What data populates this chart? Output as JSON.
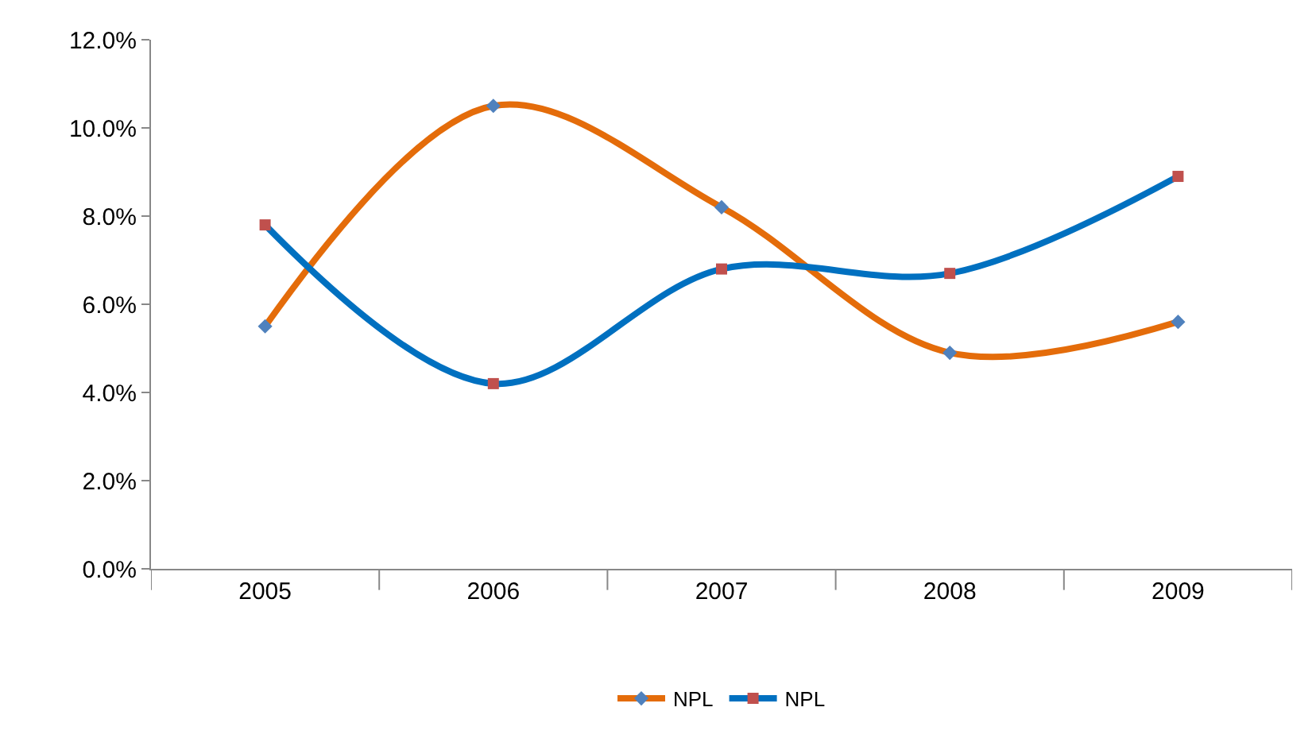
{
  "chart_data": {
    "type": "line",
    "categories": [
      "2005",
      "2006",
      "2007",
      "2008",
      "2009"
    ],
    "series": [
      {
        "name": "NPL",
        "color": "#e46c0a",
        "colors": [
          "#4f81bd",
          "#4f81bd",
          "#4f81bd",
          "#4f81bd",
          "#4f81bd"
        ],
        "marker": "diamond",
        "values": [
          5.5,
          10.5,
          8.2,
          4.9,
          5.6
        ]
      },
      {
        "name": "NPL",
        "color": "#0070c0",
        "colors": [
          "#c0504d",
          "#c0504d",
          "#c0504d",
          "#c0504d",
          "#c0504d"
        ],
        "marker": "square",
        "values": [
          7.8,
          4.2,
          6.8,
          6.7,
          8.9
        ]
      }
    ],
    "ylim": [
      0,
      12
    ],
    "yticks": [
      {
        "value": 0,
        "label": "0.0%"
      },
      {
        "value": 2,
        "label": "2.0%"
      },
      {
        "value": 4,
        "label": "4.0%"
      },
      {
        "value": 6,
        "label": "6.0%"
      },
      {
        "value": 8,
        "label": "8.0%"
      },
      {
        "value": 10,
        "label": "10.0%"
      },
      {
        "value": 12,
        "label": "12.0%"
      }
    ],
    "legend": "bottom"
  }
}
